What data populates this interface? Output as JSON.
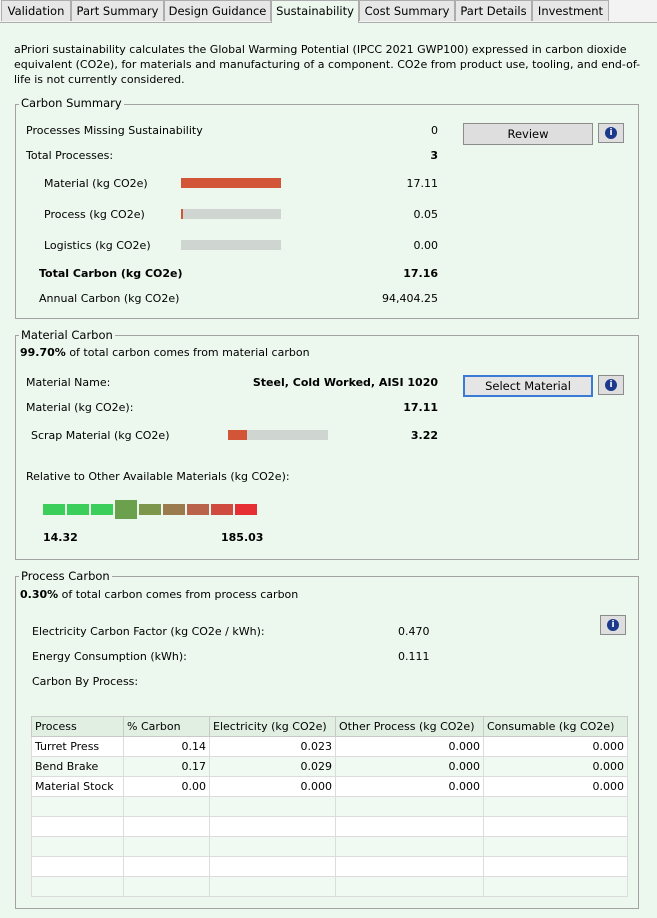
{
  "tabs": [
    "Validation",
    "Part Summary",
    "Design Guidance",
    "Sustainability",
    "Cost Summary",
    "Part Details",
    "Investment"
  ],
  "active_tab": "Sustainability",
  "intro_text": "aPriori sustainability calculates the Global Warming Potential (IPCC 2021 GWP100) expressed in carbon dioxide equivalent (CO2e), for materials and manufacturing of a component. CO2e from product use, tooling, and end-of-life is not currently considered.",
  "carbon_summary": {
    "title": "Carbon Summary",
    "missing_label": "Processes Missing Sustainability",
    "missing_value": "0",
    "review_label": "Review",
    "total_processes_label": "Total Processes:",
    "total_processes_value": "3",
    "material_label": "Material (kg CO2e)",
    "material_value": "17.11",
    "material_fraction": 1.0,
    "process_label": "Process (kg CO2e)",
    "process_value": "0.05",
    "process_fraction": 0.003,
    "logistics_label": "Logistics (kg CO2e)",
    "logistics_value": "0.00",
    "logistics_fraction": 0.0,
    "total_carbon_label": "Total Carbon (kg CO2e)",
    "total_carbon_value": "17.16",
    "annual_label": "Annual Carbon (kg CO2e)",
    "annual_value": "94,404.25"
  },
  "material_carbon": {
    "title": "Material Carbon",
    "share_percent": "99.70%",
    "share_text": " of total carbon comes from material carbon",
    "name_label": "Material Name:",
    "name_value": "Steel, Cold Worked, AISI 1020",
    "select_label": "Select Material",
    "co2_label": "Material (kg CO2e):",
    "co2_value": "17.11",
    "scrap_label": "Scrap Material (kg CO2e)",
    "scrap_value": "3.22",
    "scrap_fraction": 0.19,
    "relative_label": "Relative to Other Available Materials (kg CO2e):",
    "scale_min": "14.32",
    "scale_max": "185.03",
    "scale_colors": [
      "#3cce5b",
      "#3cce5b",
      "#3cce5b",
      "#6ba04c",
      "#7c974c",
      "#9b7b4e",
      "#b9634b",
      "#cf4b3f",
      "#e52f33"
    ],
    "scale_current_index": 3
  },
  "process_carbon": {
    "title": "Process Carbon",
    "share_percent": "0.30%",
    "share_text": " of total carbon comes from process carbon",
    "elec_factor_label": "Electricity Carbon Factor (kg CO2e / kWh):",
    "elec_factor_value": "0.470",
    "energy_label": "Energy Consumption (kWh):",
    "energy_value": "0.111",
    "by_process_label": "Carbon By Process:",
    "table": {
      "headers": [
        "Process",
        "% Carbon",
        "Electricity (kg CO2e)",
        "Other Process (kg CO2e)",
        "Consumable (kg CO2e)"
      ],
      "rows": [
        [
          "Turret Press",
          "0.14",
          "0.023",
          "0.000",
          "0.000"
        ],
        [
          "Bend Brake",
          "0.17",
          "0.029",
          "0.000",
          "0.000"
        ],
        [
          "Material Stock",
          "0.00",
          "0.000",
          "0.000",
          "0.000"
        ]
      ],
      "empty_rows": 5
    }
  },
  "colors": {
    "background": "#ecf7ee",
    "bar_fill": "#d15536",
    "bar_track": "#cfd6d1",
    "info_icon": "#1c3a8c"
  }
}
